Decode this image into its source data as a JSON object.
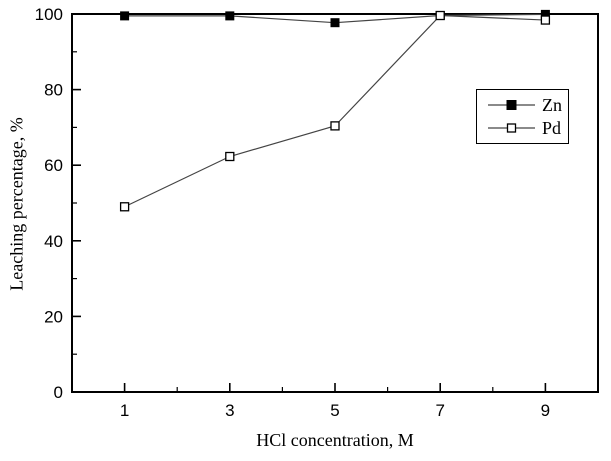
{
  "figure": {
    "background": "#ffffff",
    "axis_color": "#000000",
    "series_line_color": "#444444",
    "marker_fill_zn": "#000000",
    "marker_fill_pd": "#ffffff"
  },
  "chart_data": {
    "type": "line",
    "title": "",
    "xlabel": "HCl concentration, M",
    "ylabel": "Leaching percentage, %",
    "xlim": [
      0,
      10
    ],
    "ylim": [
      0,
      100
    ],
    "x_major_ticks": [
      1,
      3,
      5,
      7,
      9
    ],
    "x_minor_ticks": [
      2,
      4,
      6,
      8
    ],
    "y_major_ticks": [
      0,
      20,
      40,
      60,
      80,
      100
    ],
    "y_minor_ticks": [
      10,
      30,
      50,
      70,
      90
    ],
    "x": [
      1,
      3,
      5,
      7,
      9
    ],
    "series": [
      {
        "name": "Zn",
        "marker": "filled-square",
        "values": [
          99.5,
          99.5,
          97.7,
          99.6,
          99.9
        ]
      },
      {
        "name": "Pd",
        "marker": "open-square",
        "values": [
          49.0,
          62.3,
          70.4,
          99.6,
          98.4
        ]
      }
    ],
    "legend": {
      "entries": [
        "Zn",
        "Pd"
      ],
      "position": "upper-right"
    },
    "grid": false
  }
}
